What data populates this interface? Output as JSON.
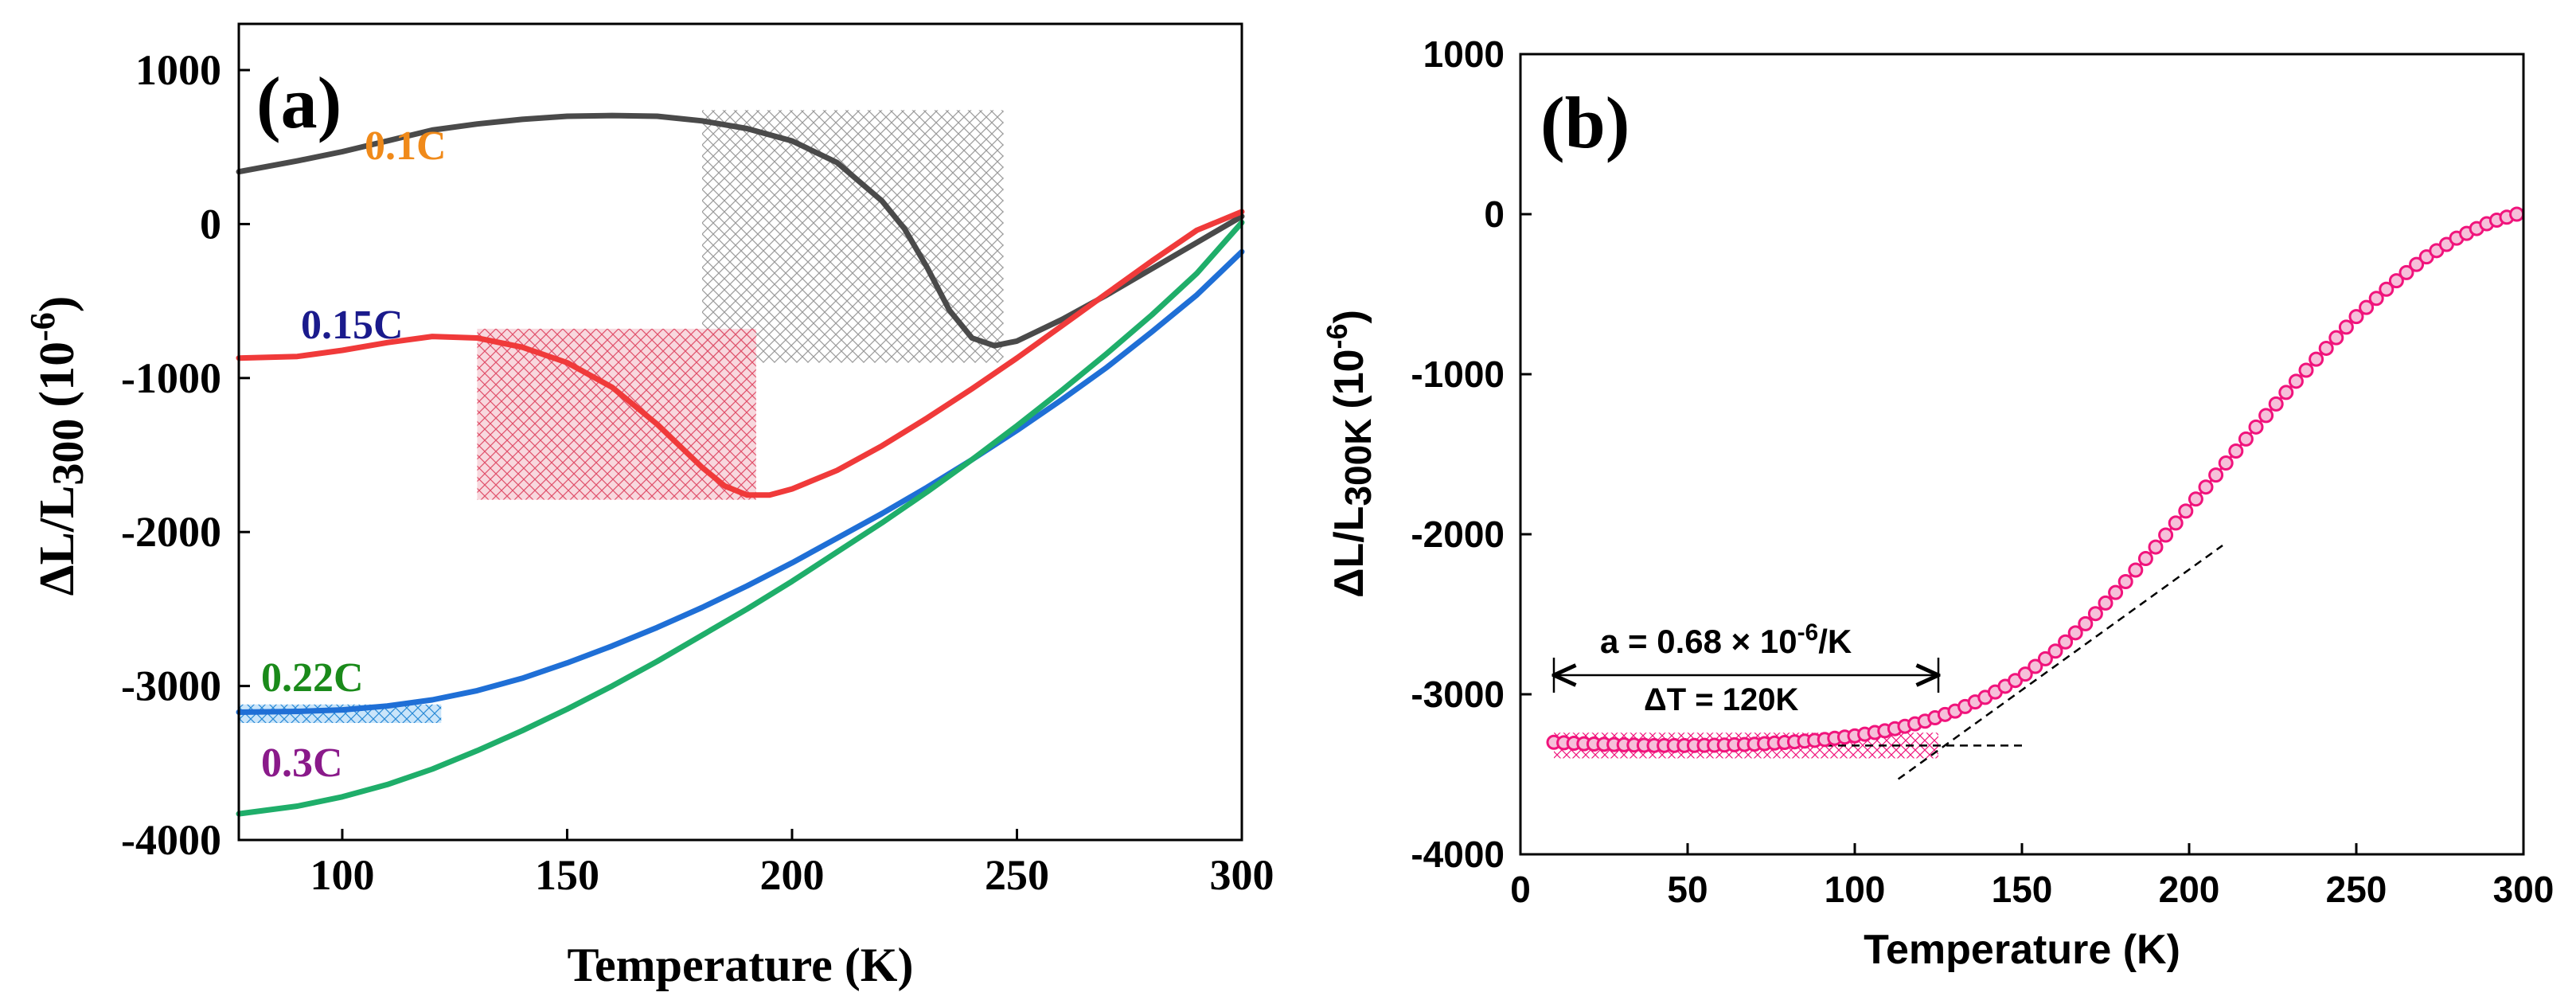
{
  "colors": {
    "c01": "#4a4a4a",
    "c015": "#f03a3a",
    "c022": "#1f6fd6",
    "c03": "#1fae6a",
    "lbl01": "#f08a1a",
    "lbl015": "#1a1a8c",
    "lbl022": "#1a8a1a",
    "lbl03": "#8a1a8a",
    "magenta": "#f0147c",
    "hatchGray": "#9a9a9a",
    "hatchRed": "#e0506a",
    "hatchBlue": "#2a8ad6",
    "hatchPink": "#f0147c"
  },
  "chart_data": [
    {
      "panel": "(a)",
      "type": "line",
      "xlabel": "Temperature (K)",
      "ylabel_main": "ΔL/L",
      "ylabel_sub": "300",
      "ylabel_unit": "(10",
      "ylabel_exp": "-6",
      "ylabel_close": ")",
      "xlim": [
        77,
        300
      ],
      "ylim": [
        -4000,
        1300
      ],
      "xticks": [
        100,
        150,
        200,
        250,
        300
      ],
      "yticks": [
        -4000,
        -3000,
        -2000,
        -1000,
        0,
        1000
      ],
      "series": [
        {
          "name": "0.1C",
          "color": "c01",
          "label_color": "lbl01",
          "x": [
            77,
            90,
            100,
            110,
            120,
            130,
            140,
            150,
            160,
            170,
            180,
            190,
            200,
            210,
            220,
            225,
            230,
            235,
            240,
            245,
            250,
            260,
            270,
            280,
            290,
            300
          ],
          "y": [
            340,
            410,
            470,
            540,
            610,
            650,
            680,
            700,
            705,
            700,
            670,
            620,
            540,
            400,
            150,
            -30,
            -280,
            -560,
            -740,
            -790,
            -760,
            -620,
            -460,
            -290,
            -120,
            50
          ]
        },
        {
          "name": "0.15C",
          "color": "c015",
          "label_color": "lbl015",
          "x": [
            77,
            90,
            100,
            110,
            120,
            130,
            140,
            150,
            160,
            170,
            175,
            180,
            185,
            190,
            195,
            200,
            210,
            220,
            230,
            240,
            250,
            260,
            270,
            280,
            290,
            300
          ],
          "y": [
            -870,
            -860,
            -820,
            -770,
            -730,
            -740,
            -800,
            -900,
            -1060,
            -1300,
            -1440,
            -1580,
            -1700,
            -1760,
            -1760,
            -1720,
            -1600,
            -1440,
            -1260,
            -1070,
            -870,
            -660,
            -450,
            -240,
            -40,
            80
          ]
        },
        {
          "name": "0.22C",
          "color": "c022",
          "label_color": "lbl022",
          "x": [
            77,
            90,
            100,
            110,
            120,
            130,
            140,
            150,
            160,
            170,
            180,
            190,
            200,
            210,
            220,
            230,
            240,
            250,
            260,
            270,
            280,
            290,
            300
          ],
          "y": [
            -3170,
            -3165,
            -3155,
            -3130,
            -3090,
            -3030,
            -2950,
            -2850,
            -2740,
            -2620,
            -2490,
            -2350,
            -2200,
            -2040,
            -1880,
            -1710,
            -1530,
            -1340,
            -1140,
            -930,
            -700,
            -460,
            -180
          ]
        },
        {
          "name": "0.3C",
          "color": "c03",
          "label_color": "lbl03",
          "x": [
            77,
            90,
            100,
            110,
            120,
            130,
            140,
            150,
            160,
            170,
            180,
            190,
            200,
            210,
            220,
            230,
            240,
            250,
            260,
            270,
            280,
            290,
            300
          ],
          "y": [
            -3830,
            -3780,
            -3720,
            -3640,
            -3540,
            -3420,
            -3290,
            -3150,
            -3000,
            -2840,
            -2670,
            -2500,
            -2320,
            -2130,
            -1940,
            -1740,
            -1530,
            -1310,
            -1080,
            -840,
            -590,
            -320,
            10
          ]
        }
      ],
      "shaded_regions": [
        {
          "x": [
            180,
            247
          ],
          "y": [
            -900,
            740
          ],
          "hatch": "hatchGray"
        },
        {
          "x": [
            130,
            192
          ],
          "y": [
            -1790,
            -680
          ],
          "hatch": "hatchRed"
        },
        {
          "x": [
            77,
            122
          ],
          "y": [
            -3240,
            -3120
          ],
          "hatch": "hatchBlue"
        }
      ]
    },
    {
      "panel": "(b)",
      "type": "scatter",
      "xlabel": "Temperature (K)",
      "ylabel_main": "ΔL/L",
      "ylabel_sub": "300K",
      "ylabel_unit": "(10",
      "ylabel_exp": "-6",
      "ylabel_close": ")",
      "xlim": [
        0,
        300
      ],
      "ylim": [
        -4000,
        1000
      ],
      "xticks": [
        0,
        50,
        100,
        150,
        200,
        250,
        300
      ],
      "yticks": [
        -4000,
        -3000,
        -2000,
        -1000,
        0,
        1000
      ],
      "color": "magenta",
      "curve_x": [
        10,
        20,
        30,
        40,
        50,
        60,
        70,
        80,
        90,
        100,
        110,
        120,
        130,
        140,
        150,
        160,
        170,
        180,
        190,
        200,
        210,
        220,
        230,
        240,
        250,
        260,
        270,
        280,
        290,
        298
      ],
      "curve_y": [
        -3300,
        -3310,
        -3315,
        -3320,
        -3320,
        -3318,
        -3312,
        -3300,
        -3285,
        -3260,
        -3225,
        -3175,
        -3105,
        -3010,
        -2890,
        -2730,
        -2540,
        -2320,
        -2080,
        -1830,
        -1580,
        -1330,
        -1090,
        -860,
        -640,
        -450,
        -280,
        -150,
        -50,
        0
      ],
      "annotation": {
        "alpha_prefix": "a  = 0.68 × 10",
        "alpha_exp": "-6",
        "alpha_suffix": "/K",
        "delta": "ΔT = 120K",
        "arrow_x": [
          10,
          125
        ]
      },
      "fit_lines": [
        {
          "x": [
            10,
            150
          ],
          "y": [
            -3320,
            -3320
          ]
        },
        {
          "x": [
            113,
            210
          ],
          "y": [
            -3530,
            -2070
          ]
        }
      ],
      "shaded_region": {
        "x": [
          10,
          125
        ],
        "y": [
          -3400,
          -3240
        ]
      }
    }
  ]
}
